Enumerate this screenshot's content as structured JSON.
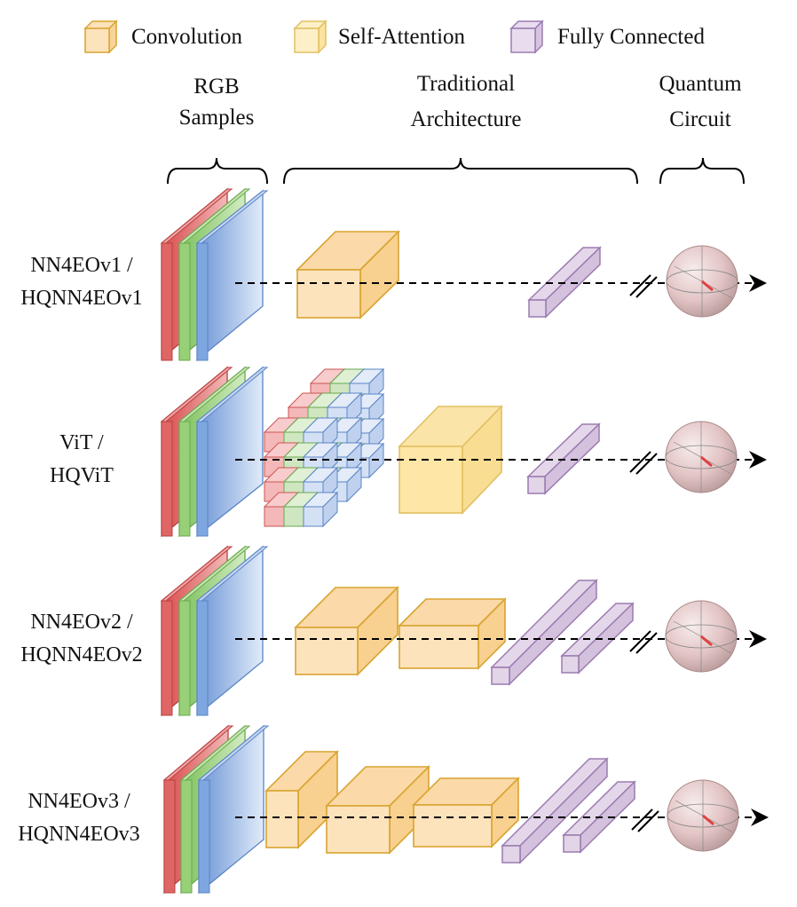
{
  "legend": [
    {
      "label": "Convolution",
      "color": "#f5cc7a",
      "stroke": "#d9a431"
    },
    {
      "label": "Self-Attention",
      "color": "#fbe9b0",
      "stroke": "#e2c061"
    },
    {
      "label": "Fully Connected",
      "color": "#e3d3ea",
      "stroke": "#9b7bb0"
    }
  ],
  "headers": {
    "rgb": [
      "RGB",
      "Samples"
    ],
    "traditional": [
      "Traditional",
      "Architecture"
    ],
    "quantum": [
      "Quantum",
      "Circuit"
    ]
  },
  "rows": [
    {
      "label": [
        "NN4EOv1 /",
        "HQNN4EOv1"
      ]
    },
    {
      "label": [
        "ViT /",
        "HQViT"
      ]
    },
    {
      "label": [
        "NN4EOv2 /",
        "HQNN4EOv2"
      ]
    },
    {
      "label": [
        "NN4EOv3 /",
        "HQNN4EOv3"
      ]
    }
  ],
  "colors": {
    "red_channel": "#e06666",
    "green_channel": "#97d077",
    "blue_channel": "#7ea6e0",
    "convolution": "#fde3bb",
    "self_attention": "#fde6a6",
    "fully_connected": "#e1d5e7",
    "sphere": "#e8c8c8"
  }
}
